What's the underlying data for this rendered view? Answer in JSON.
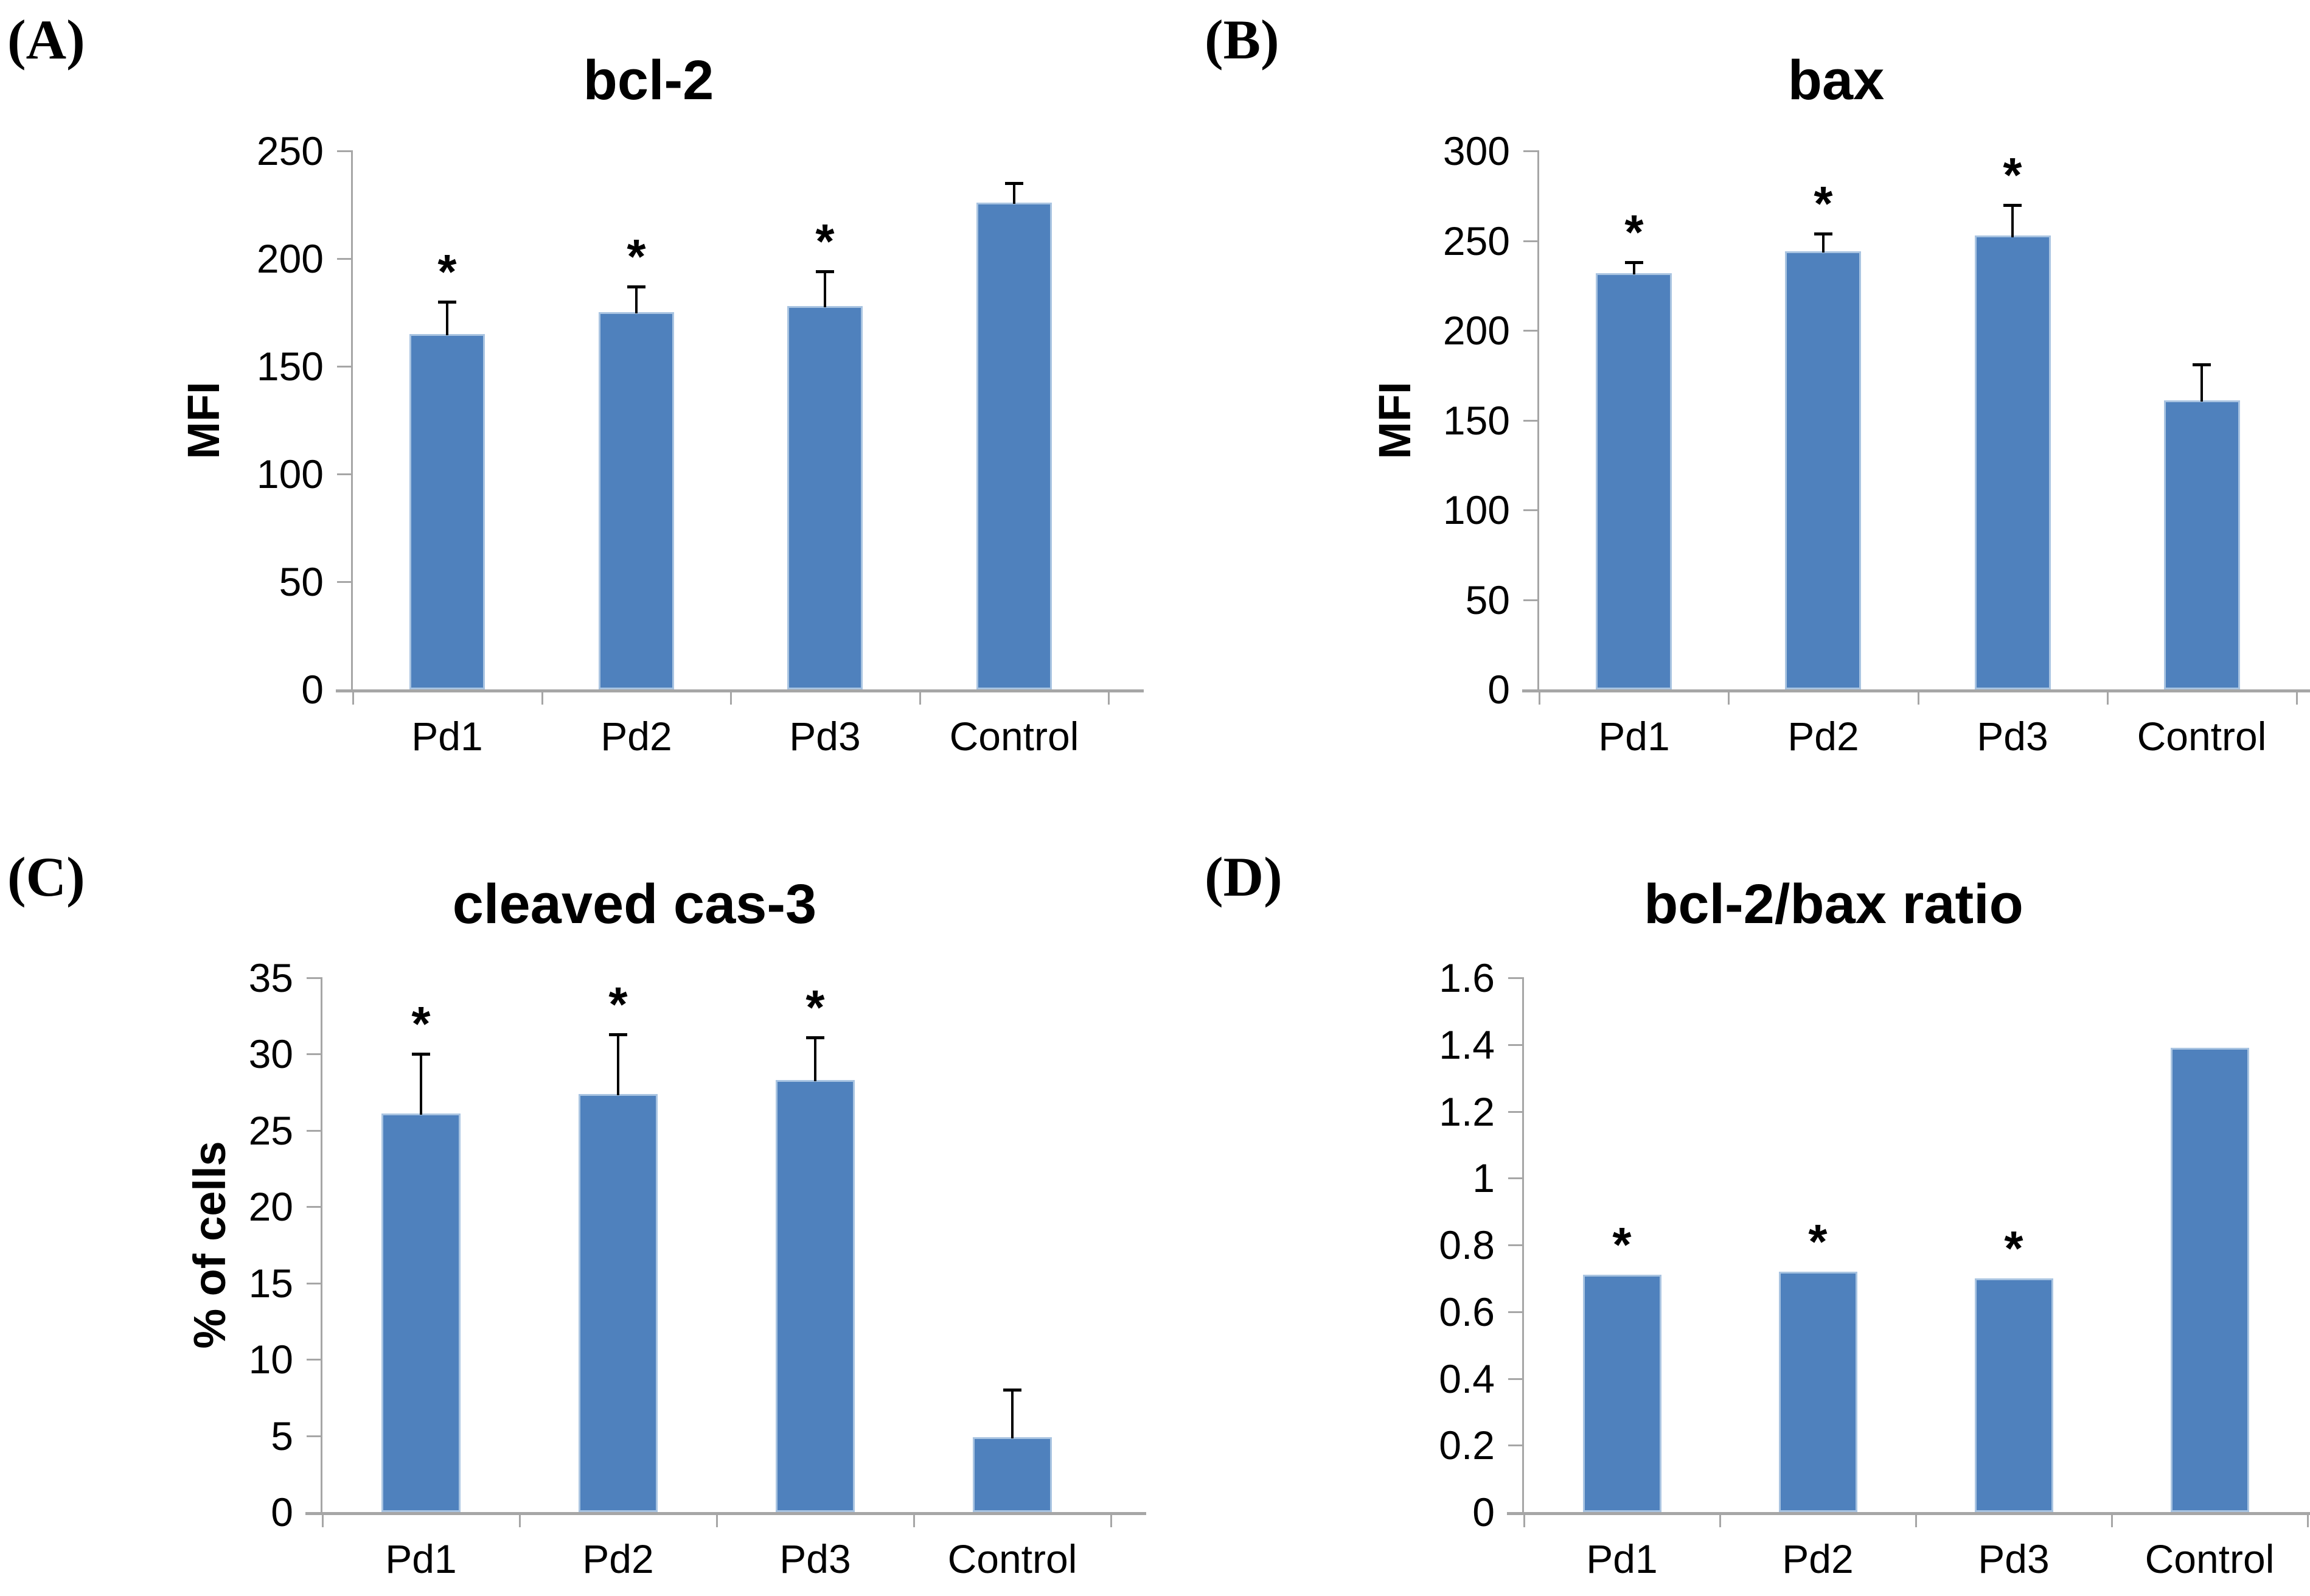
{
  "style": {
    "bar_color": "#4F81BD",
    "bar_edge_color": "#A9C4E1",
    "axis_color": "#A6A6A6",
    "error_bar_color": "#000000",
    "text_color": "#000000",
    "background_color": "#FFFFFF"
  },
  "chart_data": [
    {
      "type": "bar",
      "panel_label": "(A)",
      "title": "bcl-2",
      "ylabel": "MFI",
      "xlabel": "",
      "categories": [
        "Pd1",
        "Pd2",
        "Pd3",
        "Control"
      ],
      "values": [
        165,
        175,
        178,
        226
      ],
      "errors_plus": [
        15,
        12,
        16,
        9
      ],
      "significant": [
        true,
        true,
        true,
        false
      ],
      "sig_marker": "*",
      "ylim": [
        0,
        250
      ],
      "yticks": [
        0,
        50,
        100,
        150,
        200,
        250
      ],
      "ytick_labels": [
        "0",
        "50",
        "100",
        "150",
        "200",
        "250"
      ],
      "grid": "off",
      "legend": "none"
    },
    {
      "type": "bar",
      "panel_label": "(B)",
      "title": "bax",
      "ylabel": "MFI",
      "xlabel": "",
      "categories": [
        "Pd1",
        "Pd2",
        "Pd3",
        "Control"
      ],
      "values": [
        232,
        244,
        253,
        161
      ],
      "errors_plus": [
        6,
        10,
        17,
        20
      ],
      "significant": [
        true,
        true,
        true,
        false
      ],
      "sig_marker": "*",
      "ylim": [
        0,
        300
      ],
      "yticks": [
        0,
        50,
        100,
        150,
        200,
        250,
        300
      ],
      "ytick_labels": [
        "0",
        "50",
        "100",
        "150",
        "200",
        "250",
        "300"
      ],
      "grid": "off",
      "legend": "none"
    },
    {
      "type": "bar",
      "panel_label": "(C)",
      "title": "cleaved cas-3",
      "ylabel": "% of cells",
      "xlabel": "",
      "categories": [
        "Pd1",
        "Pd2",
        "Pd3",
        "Control"
      ],
      "values": [
        26.1,
        27.4,
        28.3,
        4.9
      ],
      "errors_plus": [
        3.9,
        3.9,
        2.8,
        3.1
      ],
      "significant": [
        true,
        true,
        true,
        false
      ],
      "sig_marker": "*",
      "ylim": [
        0,
        35
      ],
      "yticks": [
        0,
        5,
        10,
        15,
        20,
        25,
        30,
        35
      ],
      "ytick_labels": [
        "0",
        "5",
        "10",
        "15",
        "20",
        "25",
        "30",
        "35"
      ],
      "grid": "off",
      "legend": "none"
    },
    {
      "type": "bar",
      "panel_label": "(D)",
      "title": "bcl-2/bax ratio",
      "ylabel": "",
      "xlabel": "",
      "categories": [
        "Pd1",
        "Pd2",
        "Pd3",
        "Control"
      ],
      "values": [
        0.71,
        0.72,
        0.7,
        1.39
      ],
      "errors_plus": null,
      "significant": [
        true,
        true,
        true,
        false
      ],
      "sig_marker": "*",
      "ylim": [
        0,
        1.6
      ],
      "yticks": [
        0,
        0.2,
        0.4,
        0.6,
        0.8,
        1,
        1.2,
        1.4,
        1.6
      ],
      "ytick_labels": [
        "0",
        "0.2",
        "0.4",
        "0.6",
        "0.8",
        "1",
        "1.2",
        "1.4",
        "1.6"
      ],
      "grid": "off",
      "legend": "none"
    }
  ]
}
